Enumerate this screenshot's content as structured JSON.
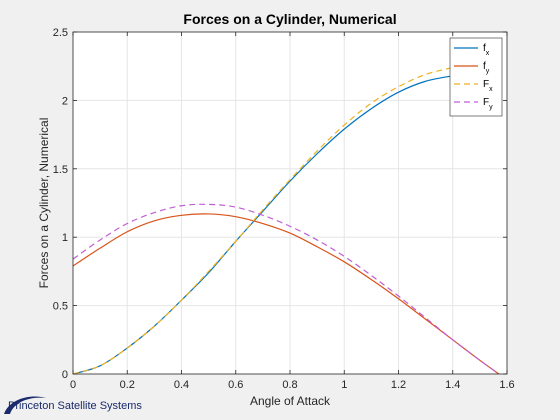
{
  "chart_data": {
    "type": "line",
    "title": "Forces on a Cylinder, Numerical",
    "xlabel": "Angle of Attack",
    "ylabel": "Forces on a Cylinder, Numerical",
    "xlim": [
      0,
      1.6
    ],
    "ylim": [
      0,
      2.5
    ],
    "xticks": [
      0,
      0.2,
      0.4,
      0.6,
      0.8,
      1,
      1.2,
      1.4,
      1.6
    ],
    "xtick_labels": [
      "0",
      "0.2",
      "0.4",
      "0.6",
      "0.8",
      "1",
      "1.2",
      "1.4",
      "1.6"
    ],
    "yticks": [
      0,
      0.5,
      1,
      1.5,
      2,
      2.5
    ],
    "ytick_labels": [
      "0",
      "0.5",
      "1",
      "1.5",
      "2",
      "2.5"
    ],
    "grid": true,
    "legend_position": "top-right",
    "x": [
      0,
      0.1,
      0.2,
      0.3,
      0.4,
      0.5,
      0.6,
      0.7,
      0.8,
      0.9,
      1.0,
      1.1,
      1.2,
      1.3,
      1.4,
      1.5,
      1.57
    ],
    "series": [
      {
        "name": "f",
        "subscript": "x",
        "color": "#0072BD",
        "dash": "solid",
        "values": [
          0,
          0.06,
          0.19,
          0.35,
          0.54,
          0.74,
          0.97,
          1.19,
          1.41,
          1.61,
          1.79,
          1.94,
          2.06,
          2.14,
          2.18,
          null,
          null
        ]
      },
      {
        "name": "f",
        "subscript": "y",
        "color": "#D95319",
        "dash": "solid",
        "values": [
          0.79,
          0.92,
          1.04,
          1.12,
          1.16,
          1.17,
          1.15,
          1.1,
          1.03,
          0.93,
          0.82,
          0.69,
          0.55,
          0.4,
          0.25,
          0.1,
          0
        ]
      },
      {
        "name": "F",
        "subscript": "x",
        "color": "#EDB120",
        "dash": "dashed",
        "values": [
          0,
          0.06,
          0.19,
          0.35,
          0.54,
          0.75,
          0.97,
          1.2,
          1.42,
          1.63,
          1.82,
          1.98,
          2.1,
          2.19,
          2.24,
          null,
          null
        ]
      },
      {
        "name": "F",
        "subscript": "y",
        "color": "#C05ED6",
        "dash": "dashed",
        "values": [
          0.84,
          0.98,
          1.1,
          1.18,
          1.23,
          1.24,
          1.22,
          1.16,
          1.08,
          0.98,
          0.86,
          0.72,
          0.57,
          0.41,
          0.25,
          0.1,
          0
        ]
      }
    ]
  },
  "branding": {
    "logo_text": "Princeton Satellite Systems"
  }
}
